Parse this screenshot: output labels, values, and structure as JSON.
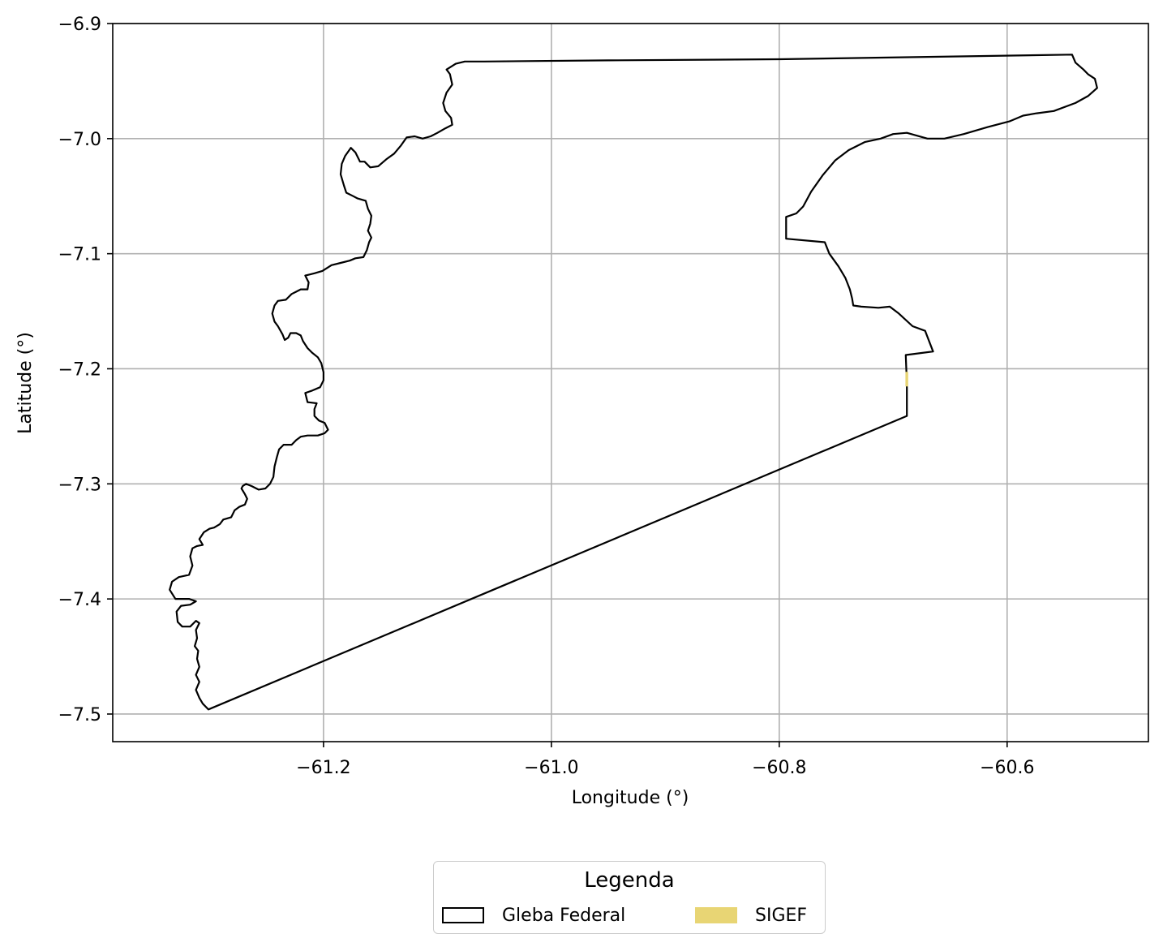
{
  "chart_data": {
    "type": "map",
    "title": "",
    "xlabel": "Longitude (°)",
    "ylabel": "Latitude (°)",
    "xlim": [
      -61.385,
      -60.476
    ],
    "ylim": [
      -7.524,
      -6.9
    ],
    "grid": true,
    "xticks": [
      -61.2,
      -61.0,
      -60.8,
      -60.6
    ],
    "xtick_labels": [
      "−61.2",
      "−61.0",
      "−60.8",
      "−60.6"
    ],
    "yticks": [
      -6.9,
      -7.0,
      -7.1,
      -7.2,
      -7.3,
      -7.4,
      -7.5
    ],
    "ytick_labels": [
      "−6.9",
      "−7.0",
      "−7.1",
      "−7.2",
      "−7.3",
      "−7.4",
      "−7.5"
    ],
    "legend": {
      "title": "Legenda",
      "placement": "bottom-center",
      "entries": [
        {
          "label": "Gleba Federal",
          "style": "outline",
          "color": "#000000"
        },
        {
          "label": "SIGEF",
          "style": "fill",
          "color": "#e8d574"
        }
      ]
    },
    "series": [
      {
        "name": "Gleba Federal",
        "color": "#000000",
        "polygon": [
          [
            -61.301,
            -7.496
          ],
          [
            -61.306,
            -7.491
          ],
          [
            -61.309,
            -7.486
          ],
          [
            -61.312,
            -7.479
          ],
          [
            -61.309,
            -7.472
          ],
          [
            -61.312,
            -7.466
          ],
          [
            -61.309,
            -7.459
          ],
          [
            -61.311,
            -7.452
          ],
          [
            -61.31,
            -7.445
          ],
          [
            -61.313,
            -7.441
          ],
          [
            -61.311,
            -7.434
          ],
          [
            -61.312,
            -7.427
          ],
          [
            -61.309,
            -7.421
          ],
          [
            -61.312,
            -7.419
          ],
          [
            -61.317,
            -7.424
          ],
          [
            -61.324,
            -7.424
          ],
          [
            -61.328,
            -7.42
          ],
          [
            -61.329,
            -7.411
          ],
          [
            -61.325,
            -7.406
          ],
          [
            -61.317,
            -7.405
          ],
          [
            -61.312,
            -7.402
          ],
          [
            -61.318,
            -7.4
          ],
          [
            -61.324,
            -7.4
          ],
          [
            -61.33,
            -7.4
          ],
          [
            -61.335,
            -7.392
          ],
          [
            -61.333,
            -7.385
          ],
          [
            -61.327,
            -7.381
          ],
          [
            -61.318,
            -7.379
          ],
          [
            -61.315,
            -7.371
          ],
          [
            -61.317,
            -7.363
          ],
          [
            -61.315,
            -7.356
          ],
          [
            -61.311,
            -7.354
          ],
          [
            -61.306,
            -7.353
          ],
          [
            -61.309,
            -7.348
          ],
          [
            -61.305,
            -7.342
          ],
          [
            -61.3,
            -7.339
          ],
          [
            -61.296,
            -7.338
          ],
          [
            -61.291,
            -7.335
          ],
          [
            -61.288,
            -7.331
          ],
          [
            -61.281,
            -7.329
          ],
          [
            -61.278,
            -7.323
          ],
          [
            -61.274,
            -7.32
          ],
          [
            -61.269,
            -7.318
          ],
          [
            -61.267,
            -7.313
          ],
          [
            -61.269,
            -7.309
          ],
          [
            -61.272,
            -7.304
          ],
          [
            -61.271,
            -7.302
          ],
          [
            -61.268,
            -7.3
          ],
          [
            -61.263,
            -7.302
          ],
          [
            -61.257,
            -7.305
          ],
          [
            -61.251,
            -7.304
          ],
          [
            -61.247,
            -7.3
          ],
          [
            -61.244,
            -7.294
          ],
          [
            -61.243,
            -7.285
          ],
          [
            -61.241,
            -7.277
          ],
          [
            -61.239,
            -7.27
          ],
          [
            -61.235,
            -7.266
          ],
          [
            -61.228,
            -7.266
          ],
          [
            -61.224,
            -7.262
          ],
          [
            -61.22,
            -7.259
          ],
          [
            -61.214,
            -7.258
          ],
          [
            -61.205,
            -7.258
          ],
          [
            -61.199,
            -7.256
          ],
          [
            -61.196,
            -7.253
          ],
          [
            -61.199,
            -7.247
          ],
          [
            -61.204,
            -7.245
          ],
          [
            -61.208,
            -7.241
          ],
          [
            -61.208,
            -7.235
          ],
          [
            -61.206,
            -7.23
          ],
          [
            -61.214,
            -7.229
          ],
          [
            -61.216,
            -7.221
          ],
          [
            -61.21,
            -7.219
          ],
          [
            -61.203,
            -7.216
          ],
          [
            -61.2,
            -7.21
          ],
          [
            -61.2,
            -7.203
          ],
          [
            -61.202,
            -7.195
          ],
          [
            -61.205,
            -7.19
          ],
          [
            -61.21,
            -7.186
          ],
          [
            -61.214,
            -7.182
          ],
          [
            -61.218,
            -7.176
          ],
          [
            -61.22,
            -7.171
          ],
          [
            -61.224,
            -7.169
          ],
          [
            -61.229,
            -7.169
          ],
          [
            -61.231,
            -7.173
          ],
          [
            -61.234,
            -7.175
          ],
          [
            -61.236,
            -7.17
          ],
          [
            -61.24,
            -7.163
          ],
          [
            -61.243,
            -7.159
          ],
          [
            -61.245,
            -7.152
          ],
          [
            -61.243,
            -7.145
          ],
          [
            -61.24,
            -7.141
          ],
          [
            -61.233,
            -7.14
          ],
          [
            -61.228,
            -7.135
          ],
          [
            -61.224,
            -7.133
          ],
          [
            -61.22,
            -7.131
          ],
          [
            -61.214,
            -7.131
          ],
          [
            -61.213,
            -7.125
          ],
          [
            -61.216,
            -7.119
          ],
          [
            -61.208,
            -7.117
          ],
          [
            -61.201,
            -7.115
          ],
          [
            -61.193,
            -7.11
          ],
          [
            -61.185,
            -7.108
          ],
          [
            -61.177,
            -7.106
          ],
          [
            -61.172,
            -7.104
          ],
          [
            -61.165,
            -7.103
          ],
          [
            -61.162,
            -7.097
          ],
          [
            -61.16,
            -7.09
          ],
          [
            -61.158,
            -7.086
          ],
          [
            -61.161,
            -7.08
          ],
          [
            -61.159,
            -7.074
          ],
          [
            -61.158,
            -7.067
          ],
          [
            -61.161,
            -7.061
          ],
          [
            -61.163,
            -7.054
          ],
          [
            -61.17,
            -7.052
          ],
          [
            -61.174,
            -7.05
          ],
          [
            -61.18,
            -7.047
          ],
          [
            -61.182,
            -7.041
          ],
          [
            -61.185,
            -7.031
          ],
          [
            -61.184,
            -7.022
          ],
          [
            -61.181,
            -7.015
          ],
          [
            -61.176,
            -7.008
          ],
          [
            -61.172,
            -7.012
          ],
          [
            -61.168,
            -7.02
          ],
          [
            -61.164,
            -7.02
          ],
          [
            -61.159,
            -7.025
          ],
          [
            -61.152,
            -7.024
          ],
          [
            -61.145,
            -7.018
          ],
          [
            -61.138,
            -7.013
          ],
          [
            -61.132,
            -7.006
          ],
          [
            -61.127,
            -6.999
          ],
          [
            -61.12,
            -6.998
          ],
          [
            -61.113,
            -7.0
          ],
          [
            -61.106,
            -6.998
          ],
          [
            -61.1,
            -6.995
          ],
          [
            -61.093,
            -6.991
          ],
          [
            -61.087,
            -6.988
          ],
          [
            -61.088,
            -6.982
          ],
          [
            -61.093,
            -6.976
          ],
          [
            -61.095,
            -6.969
          ],
          [
            -61.092,
            -6.96
          ],
          [
            -61.087,
            -6.953
          ],
          [
            -61.089,
            -6.944
          ],
          [
            -61.092,
            -6.94
          ],
          [
            -61.084,
            -6.935
          ],
          [
            -61.076,
            -6.933
          ],
          [
            -61.059,
            -6.933
          ],
          [
            -60.95,
            -6.932
          ],
          [
            -60.8,
            -6.931
          ],
          [
            -60.67,
            -6.929
          ],
          [
            -60.543,
            -6.927
          ],
          [
            -60.54,
            -6.934
          ],
          [
            -60.533,
            -6.94
          ],
          [
            -60.529,
            -6.944
          ],
          [
            -60.523,
            -6.948
          ],
          [
            -60.521,
            -6.956
          ],
          [
            -60.529,
            -6.963
          ],
          [
            -60.54,
            -6.969
          ],
          [
            -60.559,
            -6.976
          ],
          [
            -60.574,
            -6.978
          ],
          [
            -60.586,
            -6.98
          ],
          [
            -60.598,
            -6.985
          ],
          [
            -60.617,
            -6.99
          ],
          [
            -60.638,
            -6.996
          ],
          [
            -60.655,
            -7.0
          ],
          [
            -60.67,
            -7.0
          ],
          [
            -60.688,
            -6.995
          ],
          [
            -60.7,
            -6.996
          ],
          [
            -60.711,
            -7.0
          ],
          [
            -60.725,
            -7.003
          ],
          [
            -60.739,
            -7.01
          ],
          [
            -60.751,
            -7.019
          ],
          [
            -60.762,
            -7.032
          ],
          [
            -60.772,
            -7.046
          ],
          [
            -60.779,
            -7.059
          ],
          [
            -60.785,
            -7.065
          ],
          [
            -60.794,
            -7.068
          ],
          [
            -60.794,
            -7.087
          ],
          [
            -60.76,
            -7.09
          ],
          [
            -60.756,
            -7.1
          ],
          [
            -60.748,
            -7.111
          ],
          [
            -60.742,
            -7.121
          ],
          [
            -60.738,
            -7.131
          ],
          [
            -60.736,
            -7.139
          ],
          [
            -60.735,
            -7.145
          ],
          [
            -60.728,
            -7.146
          ],
          [
            -60.713,
            -7.147
          ],
          [
            -60.703,
            -7.146
          ],
          [
            -60.695,
            -7.152
          ],
          [
            -60.683,
            -7.163
          ],
          [
            -60.672,
            -7.167
          ],
          [
            -60.665,
            -7.185
          ],
          [
            -60.689,
            -7.188
          ],
          [
            -60.688,
            -7.213
          ],
          [
            -60.688,
            -7.241
          ]
        ]
      },
      {
        "name": "SIGEF",
        "color": "#e8d574",
        "polygon": [
          [
            -60.6889,
            -7.203
          ],
          [
            -60.6872,
            -7.203
          ],
          [
            -60.6872,
            -7.215
          ],
          [
            -60.6889,
            -7.215
          ]
        ]
      }
    ]
  }
}
